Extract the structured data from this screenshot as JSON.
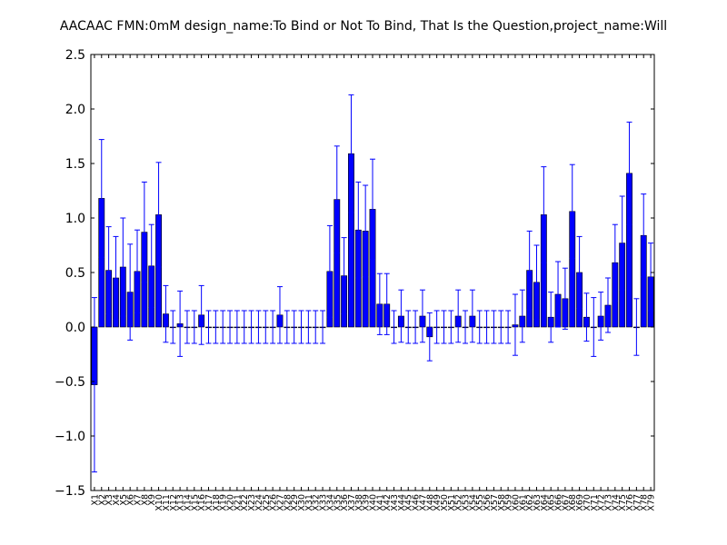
{
  "chart_data": {
    "type": "bar",
    "title": "AACAAC  FMN:0mM  design_name:To Bind or Not To Bind, That Is the Question,project_name:Will",
    "xlabel": "",
    "ylabel": "",
    "ylim": [
      -1.5,
      2.5
    ],
    "yticks": [
      -1.5,
      -1.0,
      -0.5,
      0.0,
      0.5,
      1.0,
      1.5,
      2.0,
      2.5
    ],
    "ytick_labels": [
      "−1.5",
      "−1.0",
      "−0.5",
      "0.0",
      "0.5",
      "1.0",
      "1.5",
      "2.0",
      "2.5"
    ],
    "grid": false,
    "bar_color": "#0000ff",
    "error_color": "#0000ff",
    "categories": [
      "X1",
      "X2",
      "X3",
      "X4",
      "X5",
      "X6",
      "X7",
      "X8",
      "X9",
      "X10",
      "X11",
      "X12",
      "X13",
      "X14",
      "X15",
      "X16",
      "X17",
      "X18",
      "X19",
      "X20",
      "X21",
      "X22",
      "X23",
      "X24",
      "X25",
      "X26",
      "X27",
      "X28",
      "X29",
      "X30",
      "X31",
      "X32",
      "X33",
      "X34",
      "X35",
      "X36",
      "X37",
      "X38",
      "X39",
      "X40",
      "X41",
      "X42",
      "X43",
      "X44",
      "X45",
      "X46",
      "X47",
      "X48",
      "X49",
      "X50",
      "X51",
      "X52",
      "X53",
      "X54",
      "X55",
      "X56",
      "X57",
      "X58",
      "X59",
      "X60",
      "X61",
      "X62",
      "X63",
      "X64",
      "X65",
      "X66",
      "X67",
      "X68",
      "X69",
      "X70",
      "X71",
      "X72",
      "X73",
      "X74",
      "X75",
      "X76",
      "X77",
      "X78",
      "X79"
    ],
    "values": [
      -0.53,
      1.18,
      0.52,
      0.45,
      0.55,
      0.32,
      0.51,
      0.87,
      0.56,
      1.03,
      0.12,
      0.0,
      0.03,
      0.0,
      0.0,
      0.11,
      0.0,
      0.0,
      0.0,
      0.0,
      0.0,
      0.0,
      0.0,
      0.0,
      0.0,
      0.0,
      0.11,
      0.0,
      0.0,
      0.0,
      0.0,
      0.0,
      0.0,
      0.51,
      1.17,
      0.47,
      1.59,
      0.89,
      0.88,
      1.08,
      0.21,
      0.21,
      0.0,
      0.1,
      0.0,
      0.0,
      0.1,
      -0.09,
      0.0,
      0.0,
      0.0,
      0.1,
      0.0,
      0.1,
      0.0,
      0.0,
      0.0,
      0.0,
      0.0,
      0.02,
      0.1,
      0.52,
      0.41,
      1.03,
      0.09,
      0.3,
      0.26,
      1.06,
      0.5,
      0.09,
      0.0,
      0.1,
      0.2,
      0.59,
      0.77,
      1.41,
      0.0,
      0.84,
      0.46
    ],
    "errors": [
      0.8,
      0.54,
      0.4,
      0.38,
      0.45,
      0.44,
      0.38,
      0.46,
      0.38,
      0.48,
      0.26,
      0.15,
      0.3,
      0.15,
      0.15,
      0.27,
      0.15,
      0.15,
      0.15,
      0.15,
      0.15,
      0.15,
      0.15,
      0.15,
      0.15,
      0.15,
      0.26,
      0.15,
      0.15,
      0.15,
      0.15,
      0.15,
      0.15,
      0.42,
      0.49,
      0.35,
      0.54,
      0.44,
      0.42,
      0.46,
      0.28,
      0.28,
      0.15,
      0.24,
      0.15,
      0.15,
      0.24,
      0.22,
      0.15,
      0.15,
      0.15,
      0.24,
      0.15,
      0.24,
      0.15,
      0.15,
      0.15,
      0.15,
      0.15,
      0.28,
      0.24,
      0.36,
      0.34,
      0.44,
      0.23,
      0.3,
      0.28,
      0.43,
      0.33,
      0.22,
      0.27,
      0.22,
      0.25,
      0.35,
      0.43,
      0.47,
      0.26,
      0.38,
      0.31
    ]
  }
}
